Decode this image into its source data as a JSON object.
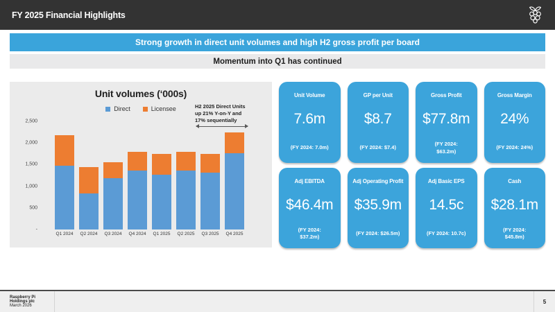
{
  "header": {
    "title": "FY 2025 Financial Highlights"
  },
  "banners": {
    "primary": "Strong growth in direct unit volumes and high H2 gross profit per board",
    "secondary": "Momentum into Q1 has continued"
  },
  "chart_data": {
    "type": "bar",
    "stacked": true,
    "title": "Unit volumes (‘000s)",
    "categories": [
      "Q1 2024",
      "Q2 2024",
      "Q3 2024",
      "Q4 2024",
      "Q1 2025",
      "Q2 2025",
      "Q3 2025",
      "Q4 2025"
    ],
    "series": [
      {
        "name": "Direct",
        "color": "#5B9BD5",
        "values": [
          1470,
          840,
          1180,
          1360,
          1270,
          1370,
          1310,
          1760
        ]
      },
      {
        "name": "Licensee",
        "color": "#ED7D31",
        "values": [
          710,
          600,
          380,
          430,
          480,
          420,
          440,
          490
        ]
      }
    ],
    "ylim": [
      0,
      2500
    ],
    "y_tick_labels": [
      "2,500",
      "2,000",
      "1,500",
      "1,000",
      "500",
      "-"
    ],
    "grid": false,
    "legend_position": "top",
    "annotation": {
      "text": "H2 2025 Direct Units\nup 21% Y-on-Y and\n17% sequentially",
      "spans_categories": [
        "Q3 2025",
        "Q4 2025"
      ]
    }
  },
  "kpi_cards": [
    {
      "label": "Unit Volume",
      "value": "7.6m",
      "footnote": "(FY 2024: 7.0m)"
    },
    {
      "label": "GP per Unit",
      "value": "$8.7",
      "footnote": "(FY 2024: $7.4)"
    },
    {
      "label": "Gross Profit",
      "value": "$77.8m",
      "footnote": "(FY 2024:\n$63.2m)"
    },
    {
      "label": "Gross Margin",
      "value": "24%",
      "footnote": "(FY 2024: 24%)"
    },
    {
      "label": "Adj EBITDA",
      "value": "$46.4m",
      "footnote": "(FY 2024:\n$37.2m)"
    },
    {
      "label": "Adj Operating Profit",
      "value": "$35.9m",
      "footnote": "(FY 2024: $26.5m)"
    },
    {
      "label": "Adj Basic EPS",
      "value": "14.5c",
      "footnote": "(FY 2024: 10.7c)"
    },
    {
      "label": "Cash",
      "value": "$28.1m",
      "footnote": "(FY 2024:\n$45.8m)"
    }
  ],
  "footer": {
    "company": "Raspberry Pi Holdings plc",
    "date": "March 2026",
    "page": "5"
  },
  "colors": {
    "header_bg": "#333333",
    "accent_blue": "#3AA4DB",
    "card_blue": "#3CA4DB",
    "panel_gray": "#EBEBEB",
    "bar_direct": "#5B9BD5",
    "bar_licensee": "#ED7D31"
  }
}
